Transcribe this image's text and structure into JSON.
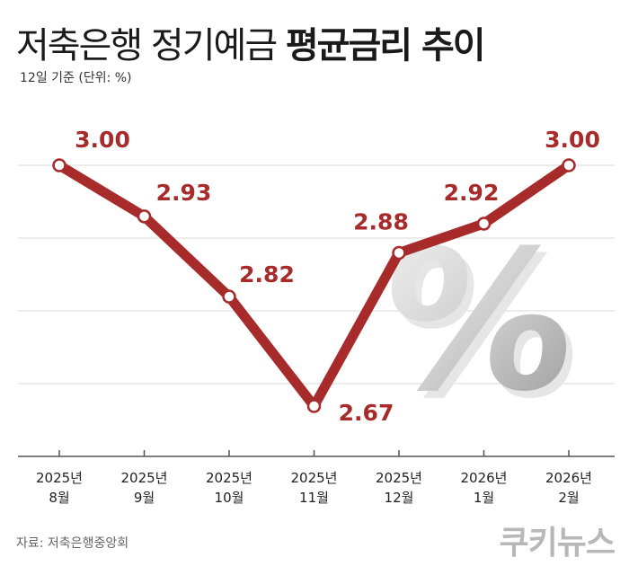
{
  "header": {
    "title_regular": "저축은행 정기예금",
    "title_bold": "평균금리 추이",
    "subtitle": "12일 기준 (단위: %)"
  },
  "footer": {
    "source": "자료: 저축은행중앙회",
    "logo": "쿠키뉴스"
  },
  "decoration": {
    "percent_glyph": "%"
  },
  "chart_data": {
    "type": "line",
    "title": "저축은행 정기예금 평균금리 추이",
    "unit": "%",
    "categories": [
      [
        "2025년",
        "8월"
      ],
      [
        "2025년",
        "9월"
      ],
      [
        "2025년",
        "10월"
      ],
      [
        "2025년",
        "11월"
      ],
      [
        "2025년",
        "12월"
      ],
      [
        "2026년",
        "1월"
      ],
      [
        "2026년",
        "2월"
      ]
    ],
    "series": [
      {
        "values": [
          3.0,
          2.93,
          2.82,
          2.67,
          2.88,
          2.92,
          3.0
        ]
      }
    ],
    "data_labels": [
      "3.00",
      "2.93",
      "2.82",
      "2.67",
      "2.88",
      "2.92",
      "3.00"
    ],
    "grid": true,
    "colors": {
      "line": "#a82b2b",
      "label": "#a82b2b",
      "grid": "#d9d9d9",
      "axis": "#555555"
    }
  }
}
